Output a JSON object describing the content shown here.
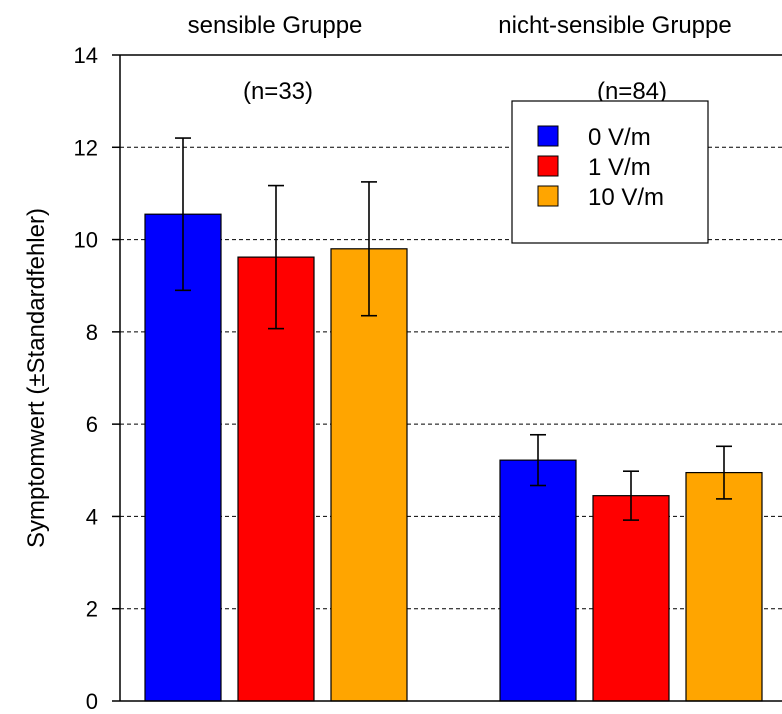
{
  "chart_data": {
    "type": "bar",
    "title": "",
    "xlabel": "",
    "ylabel": "Symptomwert (±Standardfehler)",
    "ylim": [
      0,
      14
    ],
    "yticks": [
      0,
      2,
      4,
      6,
      8,
      10,
      12,
      14
    ],
    "grid": true,
    "legend_position": "top-right",
    "groups": [
      {
        "label": "sensible Gruppe",
        "annotation": "(n=33)"
      },
      {
        "label": "nicht-sensible Gruppe",
        "annotation": "(n=84)"
      }
    ],
    "series": [
      {
        "name": "0 V/m",
        "color": "#0000ff",
        "values": [
          10.55,
          5.22
        ],
        "errors": [
          1.65,
          0.55
        ]
      },
      {
        "name": "1 V/m",
        "color": "#ff0000",
        "values": [
          9.62,
          4.45
        ],
        "errors": [
          1.55,
          0.53
        ]
      },
      {
        "name": "10 V/m",
        "color": "#ffa500",
        "values": [
          9.8,
          4.95
        ],
        "errors": [
          1.45,
          0.57
        ]
      }
    ]
  }
}
